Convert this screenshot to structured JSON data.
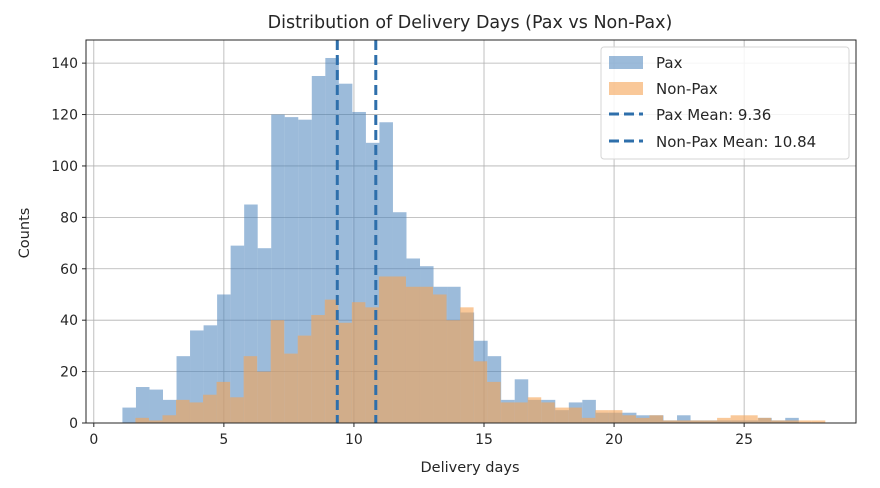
{
  "chart_data": {
    "type": "histogram",
    "title": "Distribution of Delivery Days (Pax vs Non-Pax)",
    "xlabel": "Delivery days",
    "ylabel": "Counts",
    "xlim": [
      -0.3,
      29.3
    ],
    "ylim": [
      0,
      149
    ],
    "x_ticks": [
      0,
      5,
      10,
      15,
      20,
      25
    ],
    "y_ticks": [
      0,
      20,
      40,
      60,
      80,
      100,
      120,
      140
    ],
    "grid": true,
    "legend_position": "top-right",
    "series": [
      {
        "name": "Pax",
        "color": "#4a84bb",
        "opacity": 0.55,
        "bins": [
          [
            1.1,
            1.62,
            6
          ],
          [
            1.62,
            2.14,
            14
          ],
          [
            2.14,
            2.66,
            13
          ],
          [
            2.66,
            3.18,
            9
          ],
          [
            3.18,
            3.7,
            26
          ],
          [
            3.7,
            4.22,
            36
          ],
          [
            4.22,
            4.74,
            38
          ],
          [
            4.74,
            5.26,
            50
          ],
          [
            5.26,
            5.78,
            69
          ],
          [
            5.78,
            6.3,
            85
          ],
          [
            6.3,
            6.82,
            68
          ],
          [
            6.82,
            7.34,
            120
          ],
          [
            7.34,
            7.86,
            119
          ],
          [
            7.86,
            8.38,
            118
          ],
          [
            8.38,
            8.9,
            135
          ],
          [
            8.9,
            9.42,
            142
          ],
          [
            9.42,
            9.94,
            132
          ],
          [
            9.94,
            10.46,
            121
          ],
          [
            10.46,
            10.98,
            109
          ],
          [
            10.98,
            11.5,
            117
          ],
          [
            11.5,
            12.02,
            82
          ],
          [
            12.02,
            12.54,
            64
          ],
          [
            12.54,
            13.06,
            61
          ],
          [
            13.06,
            13.58,
            53
          ],
          [
            13.58,
            14.1,
            53
          ],
          [
            14.1,
            14.62,
            43
          ],
          [
            14.62,
            15.14,
            32
          ],
          [
            15.14,
            15.66,
            26
          ],
          [
            15.66,
            16.18,
            9
          ],
          [
            16.18,
            16.7,
            17
          ],
          [
            16.7,
            17.22,
            9
          ],
          [
            17.22,
            17.74,
            9
          ],
          [
            17.74,
            18.26,
            5
          ],
          [
            18.26,
            18.78,
            8
          ],
          [
            18.78,
            19.3,
            9
          ],
          [
            19.3,
            19.82,
            4
          ],
          [
            19.82,
            20.34,
            4
          ],
          [
            20.34,
            20.86,
            4
          ],
          [
            20.86,
            21.38,
            3
          ],
          [
            21.38,
            21.9,
            3
          ],
          [
            21.9,
            22.42,
            1
          ],
          [
            22.42,
            22.94,
            3
          ],
          [
            22.94,
            23.46,
            1
          ],
          [
            23.46,
            23.98,
            1
          ],
          [
            23.98,
            24.5,
            1
          ],
          [
            24.5,
            25.02,
            1
          ],
          [
            25.02,
            25.54,
            1
          ],
          [
            25.54,
            26.06,
            2
          ],
          [
            26.06,
            26.58,
            1
          ],
          [
            26.58,
            27.1,
            2
          ]
        ]
      },
      {
        "name": "Non-Pax",
        "color": "#f5a455",
        "opacity": 0.6,
        "bins": [
          [
            1.6,
            2.12,
            2
          ],
          [
            2.12,
            2.64,
            1
          ],
          [
            2.64,
            3.16,
            3
          ],
          [
            3.16,
            3.68,
            9
          ],
          [
            3.68,
            4.2,
            8
          ],
          [
            4.2,
            4.72,
            11
          ],
          [
            4.72,
            5.24,
            16
          ],
          [
            5.24,
            5.76,
            10
          ],
          [
            5.76,
            6.28,
            26
          ],
          [
            6.28,
            6.8,
            20
          ],
          [
            6.8,
            7.32,
            40
          ],
          [
            7.32,
            7.84,
            27
          ],
          [
            7.84,
            8.36,
            34
          ],
          [
            8.36,
            8.88,
            42
          ],
          [
            8.88,
            9.4,
            48
          ],
          [
            9.4,
            9.92,
            39
          ],
          [
            9.92,
            10.44,
            47
          ],
          [
            10.44,
            10.96,
            45
          ],
          [
            10.96,
            11.48,
            57
          ],
          [
            11.48,
            12,
            57
          ],
          [
            12,
            12.52,
            53
          ],
          [
            12.52,
            13.04,
            53
          ],
          [
            13.04,
            13.56,
            50
          ],
          [
            13.56,
            14.08,
            40
          ],
          [
            14.08,
            14.6,
            45
          ],
          [
            14.6,
            15.12,
            24
          ],
          [
            15.12,
            15.64,
            16
          ],
          [
            15.64,
            16.16,
            8
          ],
          [
            16.16,
            16.68,
            8
          ],
          [
            16.68,
            17.2,
            10
          ],
          [
            17.2,
            17.72,
            8
          ],
          [
            17.72,
            18.24,
            6
          ],
          [
            18.24,
            18.76,
            6
          ],
          [
            18.76,
            19.28,
            2
          ],
          [
            19.28,
            19.8,
            5
          ],
          [
            19.8,
            20.32,
            5
          ],
          [
            20.32,
            20.84,
            3
          ],
          [
            20.84,
            21.36,
            2
          ],
          [
            21.36,
            21.88,
            3
          ],
          [
            21.88,
            22.4,
            1
          ],
          [
            22.4,
            22.92,
            1
          ],
          [
            22.92,
            23.44,
            1
          ],
          [
            23.44,
            23.96,
            1
          ],
          [
            23.96,
            24.48,
            2
          ],
          [
            24.48,
            25,
            3
          ],
          [
            25,
            25.52,
            3
          ],
          [
            25.52,
            26.04,
            2
          ],
          [
            26.04,
            26.56,
            1
          ],
          [
            26.56,
            27.08,
            1
          ],
          [
            27.08,
            27.6,
            1
          ],
          [
            27.6,
            28.12,
            1
          ]
        ]
      }
    ],
    "reference_lines": [
      {
        "name": "Pax Mean: 9.36",
        "x": 9.36,
        "color": "#2e6fab",
        "style": "dashed"
      },
      {
        "name": "Non-Pax Mean: 10.84",
        "x": 10.84,
        "color": "#2e6fab",
        "style": "dashed"
      }
    ]
  }
}
